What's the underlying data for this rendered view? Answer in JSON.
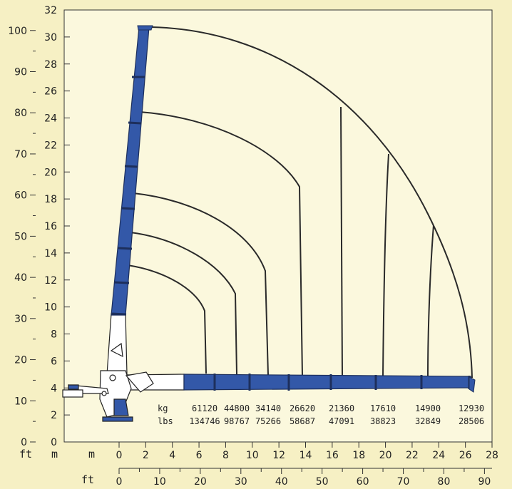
{
  "colors": {
    "background": "#f6f0c4",
    "plot_background": "#fbf8dd",
    "boom_blue": "#3358a8",
    "curve_line": "#2a2a2a"
  },
  "units": {
    "ft": "ft",
    "m": "m"
  },
  "axes": {
    "m_left_ticks": [
      "0",
      "2",
      "4",
      "6",
      "8",
      "10",
      "12",
      "14",
      "16",
      "18",
      "20",
      "22",
      "24",
      "26",
      "28",
      "30",
      "32"
    ],
    "ft_left_ticks": [
      "0",
      "10",
      "20",
      "30",
      "40",
      "50",
      "60",
      "70",
      "80",
      "90",
      "100"
    ],
    "m_bottom_ticks": [
      "0",
      "2",
      "4",
      "6",
      "8",
      "10",
      "12",
      "14",
      "16",
      "18",
      "20",
      "22",
      "24",
      "26",
      "28"
    ],
    "ft_bottom_ticks": [
      "0",
      "10",
      "20",
      "30",
      "40",
      "50",
      "60",
      "70",
      "80",
      "90"
    ]
  },
  "load_table": {
    "kg_label": "kg",
    "lbs_label": "lbs",
    "kg": [
      "61120",
      "44800",
      "34140",
      "26620",
      "21360",
      "17610",
      "14900",
      "12930"
    ],
    "lbs": [
      "134746",
      "98767",
      "75266",
      "58687",
      "47091",
      "38823",
      "32849",
      "28506"
    ]
  }
}
